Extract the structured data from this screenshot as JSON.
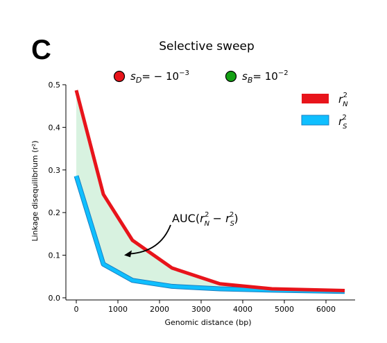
{
  "panel_letter": "C",
  "marker_legend": [
    {
      "label": "s_D = -10^-3",
      "color": "#e8141b"
    },
    {
      "label": "s_B = 10^-2",
      "color": "#14a014"
    }
  ],
  "chart_data": {
    "type": "line",
    "title": "Selective sweep",
    "xlabel": "Genomic distance (bp)",
    "ylabel": "Linkage disequilibrium (r²)",
    "xlim": [
      -250,
      6700
    ],
    "ylim": [
      -0.005,
      0.5
    ],
    "xticks": [
      0,
      1000,
      2000,
      3000,
      4000,
      5000,
      6000
    ],
    "yticks": [
      0.0,
      0.1,
      0.2,
      0.3,
      0.4,
      0.5
    ],
    "grid": false,
    "legend_position": "top-right",
    "series": [
      {
        "name": "r_N^2",
        "color": "#e8141b",
        "x": [
          0,
          650,
          1350,
          2300,
          3450,
          4700,
          6450
        ],
        "y": [
          0.487,
          0.243,
          0.135,
          0.07,
          0.033,
          0.021,
          0.017
        ]
      },
      {
        "name": "r_S^2",
        "color": "#0fbfff",
        "x": [
          0,
          650,
          1350,
          2300,
          3450,
          4700,
          6450
        ],
        "y": [
          0.286,
          0.079,
          0.041,
          0.027,
          0.021,
          0.018,
          0.015
        ]
      }
    ],
    "fill_between": {
      "color": "#d8f2e0"
    },
    "annotation": {
      "text": "AUC(r_N^2 − r_S^2)",
      "point_x": 1150,
      "point_y": 0.1
    }
  }
}
